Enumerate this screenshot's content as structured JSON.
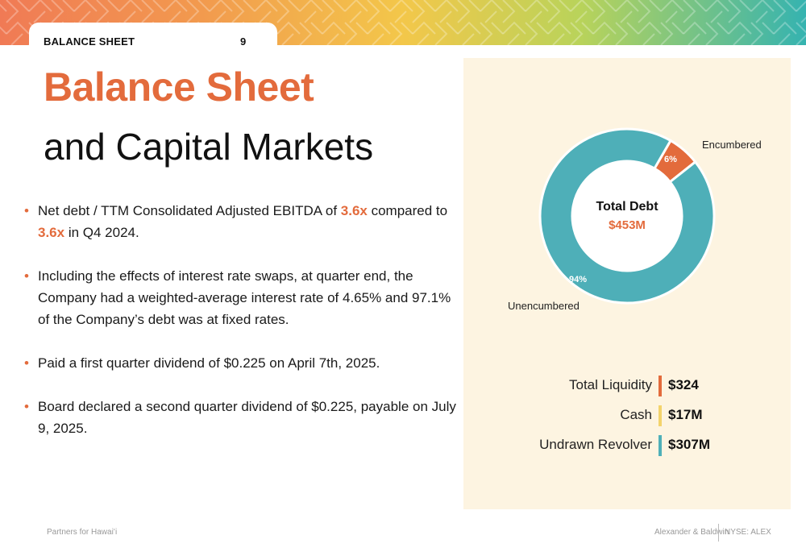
{
  "header": {
    "section_label": "BALANCE SHEET",
    "page_number": "9"
  },
  "title": {
    "main": "Balance Sheet",
    "sub": "and Capital Markets"
  },
  "bullets": [
    {
      "parts": [
        {
          "text": "Net debt / TTM Consolidated Adjusted EBITDA of ",
          "highlight": false
        },
        {
          "text": "3.6x",
          "highlight": true
        },
        {
          "text": " compared to ",
          "highlight": false
        },
        {
          "text": "3.6x",
          "highlight": true
        },
        {
          "text": " in Q4 2024.",
          "highlight": false
        }
      ]
    },
    {
      "parts": [
        {
          "text": "Including the effects of interest rate swaps, at quarter end, the Company had a weighted-average interest rate of 4.65% and 97.1% of the Company’s debt was at fixed rates.",
          "highlight": false
        }
      ]
    },
    {
      "parts": [
        {
          "text": "Paid a first quarter dividend of $0.225 on April 7th, 2025.",
          "highlight": false
        }
      ]
    },
    {
      "parts": [
        {
          "text": "Board declared a second quarter dividend of $0.225, payable on July 9, 2025.",
          "highlight": false
        }
      ]
    }
  ],
  "chart_data": {
    "type": "pie",
    "variant": "donut",
    "center_label": "Total Debt",
    "center_value": "$453M",
    "slices": [
      {
        "name": "Encumbered",
        "value": 6,
        "label": "6%",
        "color": "#e36b3c"
      },
      {
        "name": "Unencumbered",
        "value": 94,
        "label": "94%",
        "color": "#4eafb8"
      }
    ]
  },
  "liquidity": [
    {
      "label": "Total Liquidity",
      "value": "$324",
      "color": "#e36b3c"
    },
    {
      "label": "Cash",
      "value": "$17M",
      "color": "#f3d36b"
    },
    {
      "label": "Undrawn Revolver",
      "value": "$307M",
      "color": "#4eafb8"
    }
  ],
  "footer": {
    "left": "Partners for Hawaiʻi",
    "company": "Alexander & Baldwin",
    "ticker": "NYSE: ALEX"
  },
  "colors": {
    "accent": "#e36b3c",
    "teal": "#4eafb8",
    "panel_bg": "#fdf4e1"
  }
}
